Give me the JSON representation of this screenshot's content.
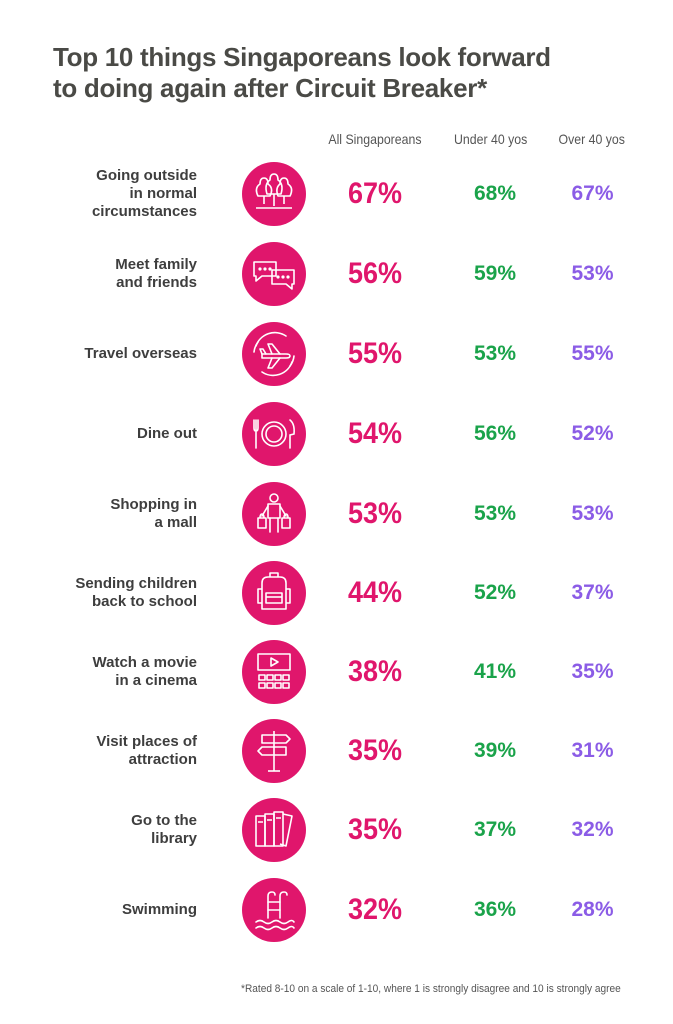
{
  "title_lines": [
    "Top 10 things Singaporeans look forward",
    "to doing again after Circuit Breaker*"
  ],
  "columns": [
    "All Singaporeans",
    "Under 40 yos",
    "Over 40 yos"
  ],
  "footnote": "*Rated 8-10 on a scale of 1-10, where 1 is strongly disagree and 10 is strongly agree",
  "colors": {
    "all": "#e0166c",
    "under40": "#1aa34a",
    "over40": "#8b5ce6",
    "icon_bg": "#e0166c"
  },
  "rows": [
    {
      "label_lines": [
        "Going outside",
        "in normal",
        "circumstances"
      ],
      "icon": "trees-icon",
      "all": "67%",
      "under40": "68%",
      "over40": "67%"
    },
    {
      "label_lines": [
        "Meet family",
        "and friends"
      ],
      "icon": "chat-bubbles-icon",
      "all": "56%",
      "under40": "59%",
      "over40": "53%"
    },
    {
      "label_lines": [
        "Travel overseas"
      ],
      "icon": "airplane-icon",
      "all": "55%",
      "under40": "53%",
      "over40": "55%"
    },
    {
      "label_lines": [
        "Dine out"
      ],
      "icon": "plate-cutlery-icon",
      "all": "54%",
      "under40": "56%",
      "over40": "52%"
    },
    {
      "label_lines": [
        "Shopping in",
        "a mall"
      ],
      "icon": "shopper-icon",
      "all": "53%",
      "under40": "53%",
      "over40": "53%"
    },
    {
      "label_lines": [
        "Sending children",
        "back to school"
      ],
      "icon": "backpack-icon",
      "all": "44%",
      "under40": "52%",
      "over40": "37%"
    },
    {
      "label_lines": [
        "Watch a movie",
        "in a cinema"
      ],
      "icon": "cinema-icon",
      "all": "38%",
      "under40": "41%",
      "over40": "35%"
    },
    {
      "label_lines": [
        "Visit places of",
        "attraction"
      ],
      "icon": "signpost-icon",
      "all": "35%",
      "under40": "39%",
      "over40": "31%"
    },
    {
      "label_lines": [
        "Go to the",
        "library"
      ],
      "icon": "books-icon",
      "all": "35%",
      "under40": "37%",
      "over40": "32%"
    },
    {
      "label_lines": [
        "Swimming"
      ],
      "icon": "pool-icon",
      "all": "32%",
      "under40": "36%",
      "over40": "28%"
    }
  ],
  "chart_data": {
    "type": "table",
    "title": "Top 10 things Singaporeans look forward to doing again after Circuit Breaker*",
    "columns": [
      "All Singaporeans",
      "Under 40 yos",
      "Over 40 yos"
    ],
    "categories": [
      "Going outside in normal circumstances",
      "Meet family and friends",
      "Travel overseas",
      "Dine out",
      "Shopping in a mall",
      "Sending children back to school",
      "Watch a movie in a cinema",
      "Visit places of attraction",
      "Go to the library",
      "Swimming"
    ],
    "series": [
      {
        "name": "All Singaporeans",
        "values": [
          67,
          56,
          55,
          54,
          53,
          44,
          38,
          35,
          35,
          32
        ]
      },
      {
        "name": "Under 40 yos",
        "values": [
          68,
          59,
          53,
          56,
          53,
          52,
          41,
          39,
          37,
          36
        ]
      },
      {
        "name": "Over 40 yos",
        "values": [
          67,
          53,
          55,
          52,
          53,
          37,
          35,
          31,
          32,
          28
        ]
      }
    ]
  }
}
